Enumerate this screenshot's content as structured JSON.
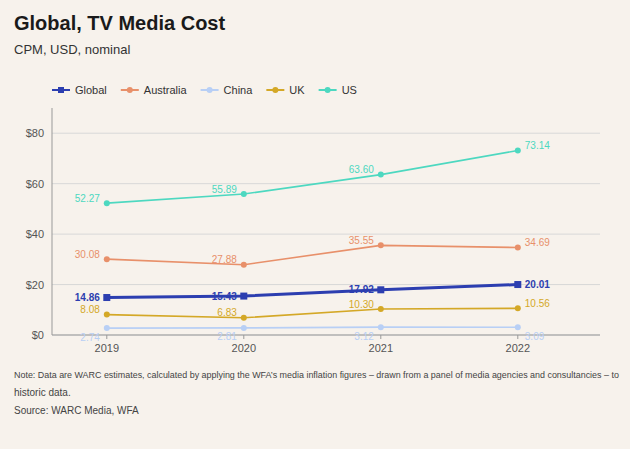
{
  "chart_data": {
    "type": "line",
    "title": "Global, TV Media Cost",
    "subtitle": "CPM, USD, nominal",
    "annotations": [
      "Note: Data are WARC estimates, calculated by applying the WFA’s media inflation figures – drawn from a panel of media agencies and consultancies – to",
      "historic data.",
      "Source: WARC Media, WFA"
    ],
    "x": [
      2019,
      2020,
      2021,
      2022
    ],
    "xlim": [
      2018.6,
      2022.6
    ],
    "xticks": [
      2019,
      2020,
      2021,
      2022
    ],
    "ylim": [
      0,
      90
    ],
    "yticks": [
      {
        "value": 0,
        "label": "$0"
      },
      {
        "value": 20,
        "label": "$20"
      },
      {
        "value": 40,
        "label": "$40"
      },
      {
        "value": 60,
        "label": "$60"
      },
      {
        "value": 80,
        "label": "$80"
      }
    ],
    "grid": true,
    "legend": "top-left",
    "data_labels": true,
    "series": [
      {
        "name": "Global",
        "color": "#2c3eb0",
        "marker": "square",
        "values": [
          14.86,
          15.43,
          17.92,
          20.01
        ]
      },
      {
        "name": "Australia",
        "color": "#e8906a",
        "marker": "circle",
        "values": [
          30.08,
          27.88,
          35.55,
          34.69
        ]
      },
      {
        "name": "China",
        "color": "#b8cff5",
        "marker": "circle",
        "values": [
          2.74,
          2.81,
          3.12,
          3.09
        ]
      },
      {
        "name": "UK",
        "color": "#d4a827",
        "marker": "circle",
        "values": [
          8.08,
          6.83,
          10.3,
          10.56
        ],
        "value_labels": [
          "8.08",
          "6.83",
          "10.30",
          "10.56"
        ]
      },
      {
        "name": "US",
        "color": "#4dd8c0",
        "marker": "circle",
        "values": [
          52.27,
          55.89,
          63.6,
          73.14
        ],
        "value_labels": [
          "52.27",
          "55.89",
          "63.60",
          "73.14"
        ]
      }
    ]
  }
}
